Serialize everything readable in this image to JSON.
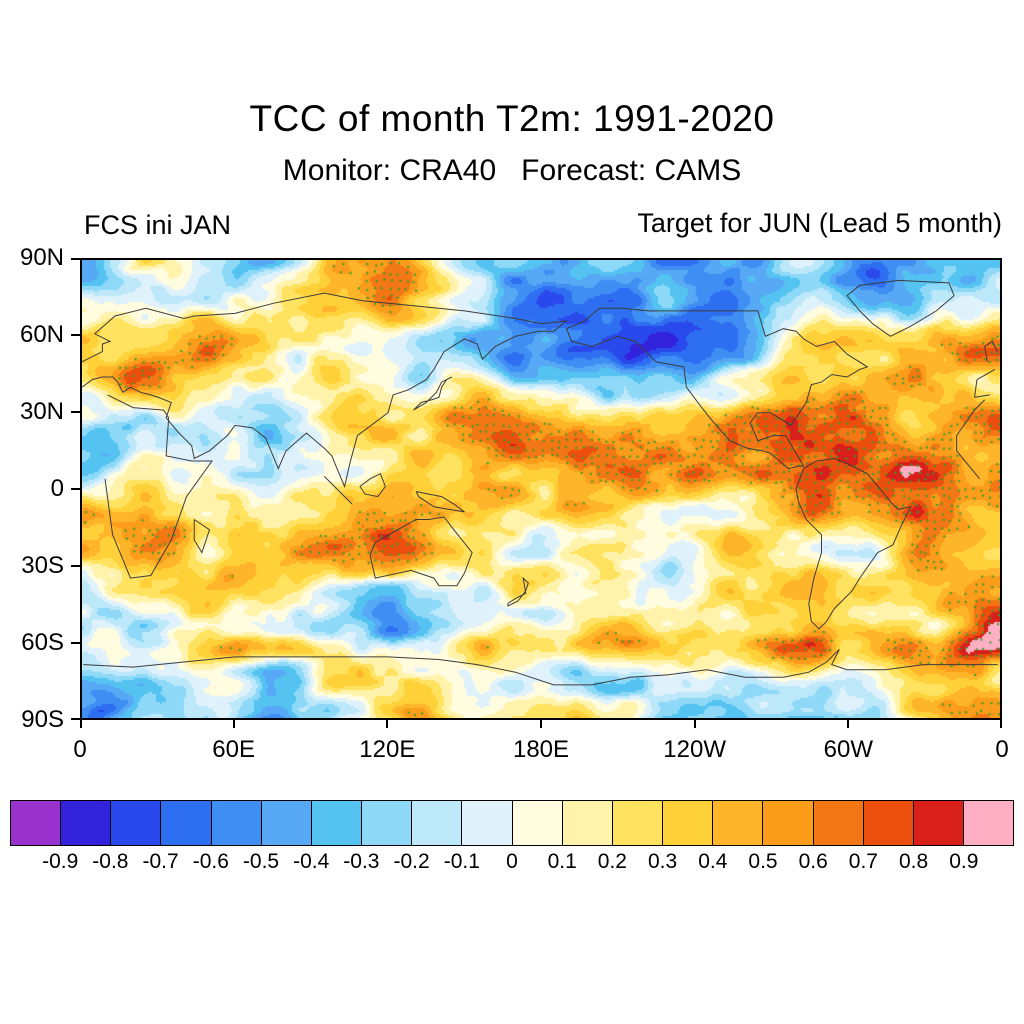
{
  "title": "TCC of month T2m: 1991-2020",
  "subtitle": "Monitor: CRA40   Forecast: CAMS",
  "panel": {
    "left_header": "FCS ini JAN",
    "right_header": "Target for JUN (Lead 5 month)"
  },
  "chart_data": {
    "type": "heatmap",
    "title": "TCC of month T2m: 1991-2020",
    "subtitle": "Monitor: CRA40   Forecast: CAMS",
    "init_label": "FCS ini JAN",
    "target_label": "Target for JUN (Lead 5 month)",
    "projection": "global equirectangular map, longitude from 0 eastward through 180 back to 0 (0-360E), latitude 90S to 90N",
    "x_tick_labels": [
      "0",
      "60E",
      "120E",
      "180E",
      "120W",
      "60W",
      "0"
    ],
    "y_tick_labels": [
      "90N",
      "60N",
      "30N",
      "0",
      "30S",
      "60S",
      "90S"
    ],
    "lon_range_deg": [
      0,
      360
    ],
    "lat_range_deg": [
      -90,
      90
    ],
    "colorbar": {
      "levels": [
        -0.9,
        -0.8,
        -0.7,
        -0.6,
        -0.5,
        -0.4,
        -0.3,
        -0.2,
        -0.1,
        0,
        0.1,
        0.2,
        0.3,
        0.4,
        0.5,
        0.6,
        0.7,
        0.8,
        0.9
      ],
      "tick_labels": [
        "-0.9",
        "-0.8",
        "-0.7",
        "-0.6",
        "-0.5",
        "-0.4",
        "-0.3",
        "-0.2",
        "-0.1",
        "0",
        "0.1",
        "0.2",
        "0.3",
        "0.4",
        "0.5",
        "0.6",
        "0.7",
        "0.8",
        "0.9"
      ],
      "colors": [
        "#9932CC",
        "#3222DC",
        "#2A49EC",
        "#2E6FF2",
        "#3E8EF3",
        "#57A8F5",
        "#54C3F2",
        "#8ED9F7",
        "#BCE8FA",
        "#DFF2FC",
        "#FFFCDF",
        "#FFF3AC",
        "#FFE25F",
        "#FFD139",
        "#FFB52A",
        "#FB9C1B",
        "#F37714",
        "#EC4E0E",
        "#D81F1A",
        "#FFAFC4"
      ]
    },
    "stipple": {
      "color": "#2DA12D",
      "meaning": "green dots mark regions of high positive TCC (significant forecast skill)"
    },
    "field_summary": "Filled-contour temporal correlation coefficient field: predominantly positive TCC of 0.1-0.6 (yellow/orange) with dense green stippling and reds above 0.6 over the tropical oceans, central and eastern Pacific, tropical Atlantic and a circumpolar band near 60S; scattered negative patches of -0.1 to -0.6 (blues) over mid- and high-latitude continents, parts of the Arctic and sectors of the Southern Ocean"
  }
}
